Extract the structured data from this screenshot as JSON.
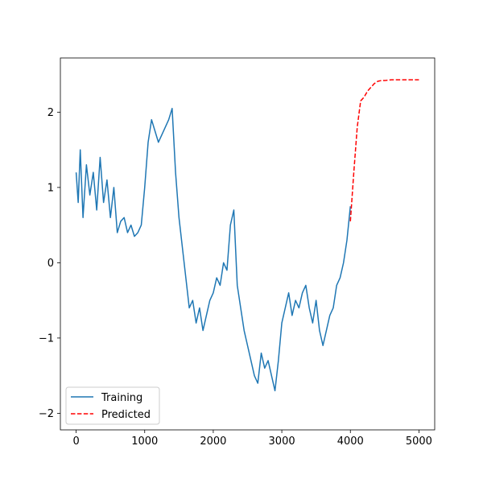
{
  "chart_data": {
    "type": "line",
    "title": "",
    "xlabel": "",
    "ylabel": "",
    "xlim": [
      -230,
      5230
    ],
    "ylim": [
      -2.22,
      2.72
    ],
    "x_ticks": [
      0,
      1000,
      2000,
      3000,
      4000,
      5000
    ],
    "x_tick_labels": [
      "0",
      "1000",
      "2000",
      "3000",
      "4000",
      "5000"
    ],
    "y_ticks": [
      -2,
      -1,
      0,
      1,
      2
    ],
    "y_tick_labels": [
      "−2",
      "−1",
      "0",
      "1",
      "2"
    ],
    "grid": false,
    "legend_position": "lower-left",
    "series": [
      {
        "name": "Training",
        "color": "#1f77b4",
        "line_style": "solid",
        "x": [
          0,
          30,
          60,
          100,
          150,
          200,
          250,
          300,
          350,
          400,
          450,
          500,
          550,
          600,
          650,
          700,
          750,
          800,
          850,
          900,
          950,
          1000,
          1050,
          1100,
          1150,
          1200,
          1250,
          1300,
          1350,
          1400,
          1450,
          1500,
          1550,
          1600,
          1650,
          1700,
          1750,
          1800,
          1850,
          1900,
          1950,
          2000,
          2050,
          2100,
          2150,
          2200,
          2250,
          2300,
          2350,
          2400,
          2450,
          2500,
          2550,
          2600,
          2650,
          2700,
          2750,
          2800,
          2850,
          2900,
          2950,
          3000,
          3050,
          3100,
          3150,
          3200,
          3250,
          3300,
          3350,
          3400,
          3450,
          3500,
          3550,
          3600,
          3650,
          3700,
          3750,
          3800,
          3850,
          3900,
          3950,
          4000
        ],
        "values": [
          1.2,
          0.8,
          1.5,
          0.6,
          1.3,
          0.9,
          1.2,
          0.7,
          1.4,
          0.8,
          1.1,
          0.6,
          1.0,
          0.4,
          0.55,
          0.6,
          0.4,
          0.5,
          0.35,
          0.4,
          0.5,
          1.0,
          1.6,
          1.9,
          1.75,
          1.6,
          1.7,
          1.8,
          1.9,
          2.05,
          1.2,
          0.6,
          0.2,
          -0.2,
          -0.6,
          -0.5,
          -0.8,
          -0.6,
          -0.9,
          -0.7,
          -0.5,
          -0.4,
          -0.2,
          -0.3,
          0.0,
          -0.1,
          0.5,
          0.7,
          -0.3,
          -0.6,
          -0.9,
          -1.1,
          -1.3,
          -1.5,
          -1.6,
          -1.2,
          -1.4,
          -1.3,
          -1.5,
          -1.7,
          -1.3,
          -0.8,
          -0.6,
          -0.4,
          -0.7,
          -0.5,
          -0.6,
          -0.4,
          -0.3,
          -0.6,
          -0.8,
          -0.5,
          -0.9,
          -1.1,
          -0.9,
          -0.7,
          -0.6,
          -0.3,
          -0.2,
          0.0,
          0.3,
          0.75
        ]
      },
      {
        "name": "Predicted",
        "color": "#ff0000",
        "line_style": "dashed",
        "x": [
          4000,
          4050,
          4100,
          4150,
          4200,
          4250,
          4300,
          4350,
          4400,
          4450,
          4500,
          4600,
          4700,
          4800,
          4900,
          5000
        ],
        "values": [
          0.55,
          1.2,
          1.8,
          2.15,
          2.2,
          2.28,
          2.33,
          2.38,
          2.41,
          2.42,
          2.42,
          2.43,
          2.43,
          2.43,
          2.43,
          2.43
        ]
      }
    ]
  }
}
